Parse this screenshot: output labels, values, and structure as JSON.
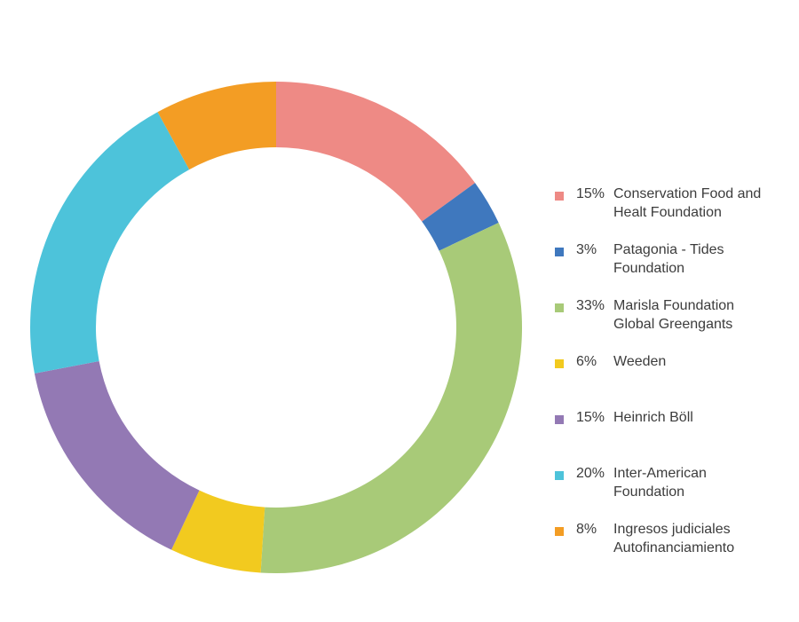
{
  "chart_data": {
    "type": "pie",
    "donut": true,
    "title": "",
    "legend_position": "right",
    "slices": [
      {
        "percent_label": "15%",
        "value": 15,
        "label_lines": [
          "Conservation Food and",
          "Healt Foundation"
        ],
        "color": "#ee8a85"
      },
      {
        "percent_label": "3%",
        "value": 3,
        "label_lines": [
          "Patagonia - Tides",
          "Foundation"
        ],
        "color": "#3f78be"
      },
      {
        "percent_label": "33%",
        "value": 33,
        "label_lines": [
          "Marisla Foundation",
          "Global Greengants"
        ],
        "color": "#a8ca78"
      },
      {
        "percent_label": "6%",
        "value": 6,
        "label_lines": [
          "Weeden"
        ],
        "color": "#f2ca1f"
      },
      {
        "percent_label": "15%",
        "value": 15,
        "label_lines": [
          "Heinrich Böll"
        ],
        "color": "#9379b4"
      },
      {
        "percent_label": "20%",
        "value": 20,
        "label_lines": [
          "Inter-American",
          "Foundation"
        ],
        "color": "#4dc3da"
      },
      {
        "percent_label": "8%",
        "value": 8,
        "label_lines": [
          "Ingresos judiciales",
          "Autofinanciamiento"
        ],
        "color": "#f39d24"
      }
    ]
  }
}
